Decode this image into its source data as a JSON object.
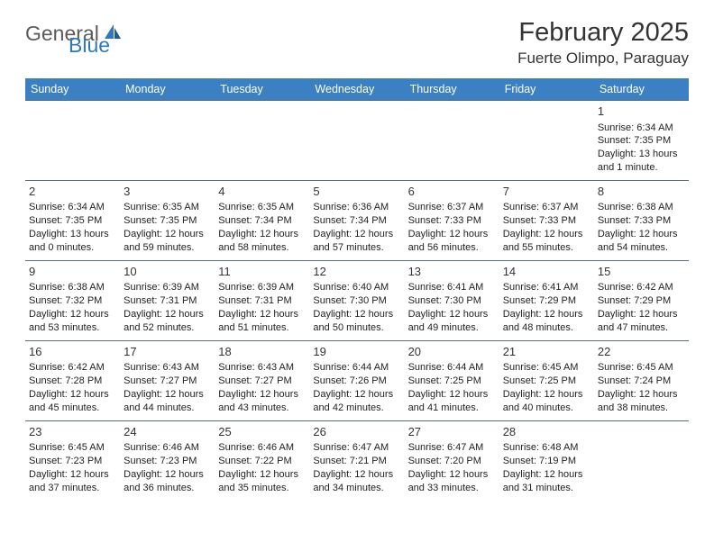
{
  "brand": {
    "word1": "General",
    "word2": "Blue",
    "color_gray": "#5b5b5b",
    "color_blue": "#2f78bd"
  },
  "title": "February 2025",
  "location": "Fuerte Olimpo, Paraguay",
  "header_bg": "#3a80c3",
  "header_fg": "#ffffff",
  "border_color": "#5a6b7c",
  "weekdays": [
    "Sunday",
    "Monday",
    "Tuesday",
    "Wednesday",
    "Thursday",
    "Friday",
    "Saturday"
  ],
  "weeks": [
    [
      null,
      null,
      null,
      null,
      null,
      null,
      {
        "n": "1",
        "sr": "Sunrise: 6:34 AM",
        "ss": "Sunset: 7:35 PM",
        "d1": "Daylight: 13 hours",
        "d2": "and 1 minute."
      }
    ],
    [
      {
        "n": "2",
        "sr": "Sunrise: 6:34 AM",
        "ss": "Sunset: 7:35 PM",
        "d1": "Daylight: 13 hours",
        "d2": "and 0 minutes."
      },
      {
        "n": "3",
        "sr": "Sunrise: 6:35 AM",
        "ss": "Sunset: 7:35 PM",
        "d1": "Daylight: 12 hours",
        "d2": "and 59 minutes."
      },
      {
        "n": "4",
        "sr": "Sunrise: 6:35 AM",
        "ss": "Sunset: 7:34 PM",
        "d1": "Daylight: 12 hours",
        "d2": "and 58 minutes."
      },
      {
        "n": "5",
        "sr": "Sunrise: 6:36 AM",
        "ss": "Sunset: 7:34 PM",
        "d1": "Daylight: 12 hours",
        "d2": "and 57 minutes."
      },
      {
        "n": "6",
        "sr": "Sunrise: 6:37 AM",
        "ss": "Sunset: 7:33 PM",
        "d1": "Daylight: 12 hours",
        "d2": "and 56 minutes."
      },
      {
        "n": "7",
        "sr": "Sunrise: 6:37 AM",
        "ss": "Sunset: 7:33 PM",
        "d1": "Daylight: 12 hours",
        "d2": "and 55 minutes."
      },
      {
        "n": "8",
        "sr": "Sunrise: 6:38 AM",
        "ss": "Sunset: 7:33 PM",
        "d1": "Daylight: 12 hours",
        "d2": "and 54 minutes."
      }
    ],
    [
      {
        "n": "9",
        "sr": "Sunrise: 6:38 AM",
        "ss": "Sunset: 7:32 PM",
        "d1": "Daylight: 12 hours",
        "d2": "and 53 minutes."
      },
      {
        "n": "10",
        "sr": "Sunrise: 6:39 AM",
        "ss": "Sunset: 7:31 PM",
        "d1": "Daylight: 12 hours",
        "d2": "and 52 minutes."
      },
      {
        "n": "11",
        "sr": "Sunrise: 6:39 AM",
        "ss": "Sunset: 7:31 PM",
        "d1": "Daylight: 12 hours",
        "d2": "and 51 minutes."
      },
      {
        "n": "12",
        "sr": "Sunrise: 6:40 AM",
        "ss": "Sunset: 7:30 PM",
        "d1": "Daylight: 12 hours",
        "d2": "and 50 minutes."
      },
      {
        "n": "13",
        "sr": "Sunrise: 6:41 AM",
        "ss": "Sunset: 7:30 PM",
        "d1": "Daylight: 12 hours",
        "d2": "and 49 minutes."
      },
      {
        "n": "14",
        "sr": "Sunrise: 6:41 AM",
        "ss": "Sunset: 7:29 PM",
        "d1": "Daylight: 12 hours",
        "d2": "and 48 minutes."
      },
      {
        "n": "15",
        "sr": "Sunrise: 6:42 AM",
        "ss": "Sunset: 7:29 PM",
        "d1": "Daylight: 12 hours",
        "d2": "and 47 minutes."
      }
    ],
    [
      {
        "n": "16",
        "sr": "Sunrise: 6:42 AM",
        "ss": "Sunset: 7:28 PM",
        "d1": "Daylight: 12 hours",
        "d2": "and 45 minutes."
      },
      {
        "n": "17",
        "sr": "Sunrise: 6:43 AM",
        "ss": "Sunset: 7:27 PM",
        "d1": "Daylight: 12 hours",
        "d2": "and 44 minutes."
      },
      {
        "n": "18",
        "sr": "Sunrise: 6:43 AM",
        "ss": "Sunset: 7:27 PM",
        "d1": "Daylight: 12 hours",
        "d2": "and 43 minutes."
      },
      {
        "n": "19",
        "sr": "Sunrise: 6:44 AM",
        "ss": "Sunset: 7:26 PM",
        "d1": "Daylight: 12 hours",
        "d2": "and 42 minutes."
      },
      {
        "n": "20",
        "sr": "Sunrise: 6:44 AM",
        "ss": "Sunset: 7:25 PM",
        "d1": "Daylight: 12 hours",
        "d2": "and 41 minutes."
      },
      {
        "n": "21",
        "sr": "Sunrise: 6:45 AM",
        "ss": "Sunset: 7:25 PM",
        "d1": "Daylight: 12 hours",
        "d2": "and 40 minutes."
      },
      {
        "n": "22",
        "sr": "Sunrise: 6:45 AM",
        "ss": "Sunset: 7:24 PM",
        "d1": "Daylight: 12 hours",
        "d2": "and 38 minutes."
      }
    ],
    [
      {
        "n": "23",
        "sr": "Sunrise: 6:45 AM",
        "ss": "Sunset: 7:23 PM",
        "d1": "Daylight: 12 hours",
        "d2": "and 37 minutes."
      },
      {
        "n": "24",
        "sr": "Sunrise: 6:46 AM",
        "ss": "Sunset: 7:23 PM",
        "d1": "Daylight: 12 hours",
        "d2": "and 36 minutes."
      },
      {
        "n": "25",
        "sr": "Sunrise: 6:46 AM",
        "ss": "Sunset: 7:22 PM",
        "d1": "Daylight: 12 hours",
        "d2": "and 35 minutes."
      },
      {
        "n": "26",
        "sr": "Sunrise: 6:47 AM",
        "ss": "Sunset: 7:21 PM",
        "d1": "Daylight: 12 hours",
        "d2": "and 34 minutes."
      },
      {
        "n": "27",
        "sr": "Sunrise: 6:47 AM",
        "ss": "Sunset: 7:20 PM",
        "d1": "Daylight: 12 hours",
        "d2": "and 33 minutes."
      },
      {
        "n": "28",
        "sr": "Sunrise: 6:48 AM",
        "ss": "Sunset: 7:19 PM",
        "d1": "Daylight: 12 hours",
        "d2": "and 31 minutes."
      },
      null
    ]
  ]
}
